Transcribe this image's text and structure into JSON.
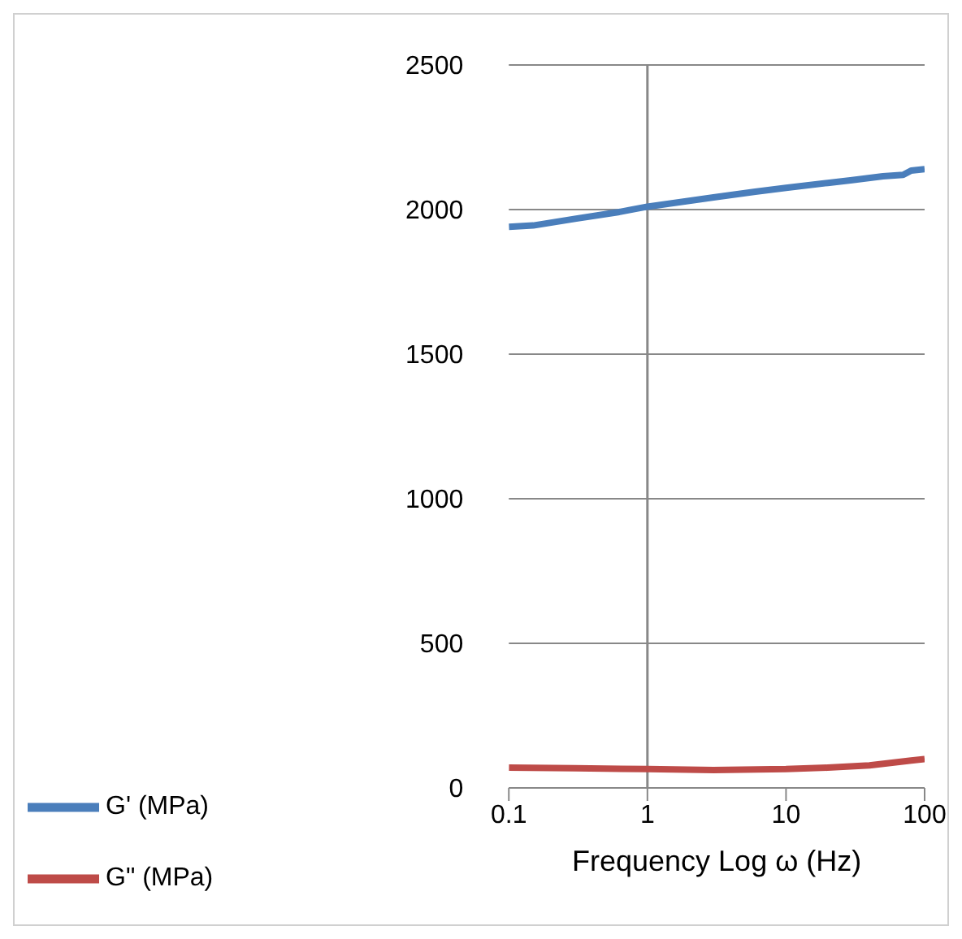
{
  "chart_data": {
    "type": "line",
    "xlabel": "Frequency Log ω (Hz)",
    "log": "x",
    "xlim": [
      0.1,
      100
    ],
    "xticks": [
      0.1,
      1,
      10,
      100
    ],
    "ylim": [
      0,
      2500
    ],
    "yticks": [
      0,
      500,
      1000,
      1500,
      2000,
      2500
    ],
    "grid": "y",
    "legend": "bottom left",
    "marker": "none",
    "line_style": "solid",
    "ref_lines": [
      {
        "axis": "x",
        "value": 1
      }
    ],
    "series": [
      {
        "name": "G' (MPa)",
        "color": "#4a7ebb",
        "x": [
          0.1,
          0.15,
          0.3,
          0.6,
          1,
          2,
          3,
          6,
          10,
          20,
          30,
          50,
          70,
          80,
          100
        ],
        "values": [
          1940,
          1945,
          1968,
          1990,
          2010,
          2030,
          2042,
          2062,
          2075,
          2092,
          2102,
          2115,
          2120,
          2135,
          2140
        ]
      },
      {
        "name": "G\" (MPa)",
        "color": "#be4b48",
        "x": [
          0.1,
          0.3,
          1,
          3,
          10,
          20,
          40,
          60,
          80,
          100
        ],
        "values": [
          70,
          68,
          65,
          62,
          65,
          70,
          78,
          88,
          95,
          100
        ]
      }
    ]
  }
}
